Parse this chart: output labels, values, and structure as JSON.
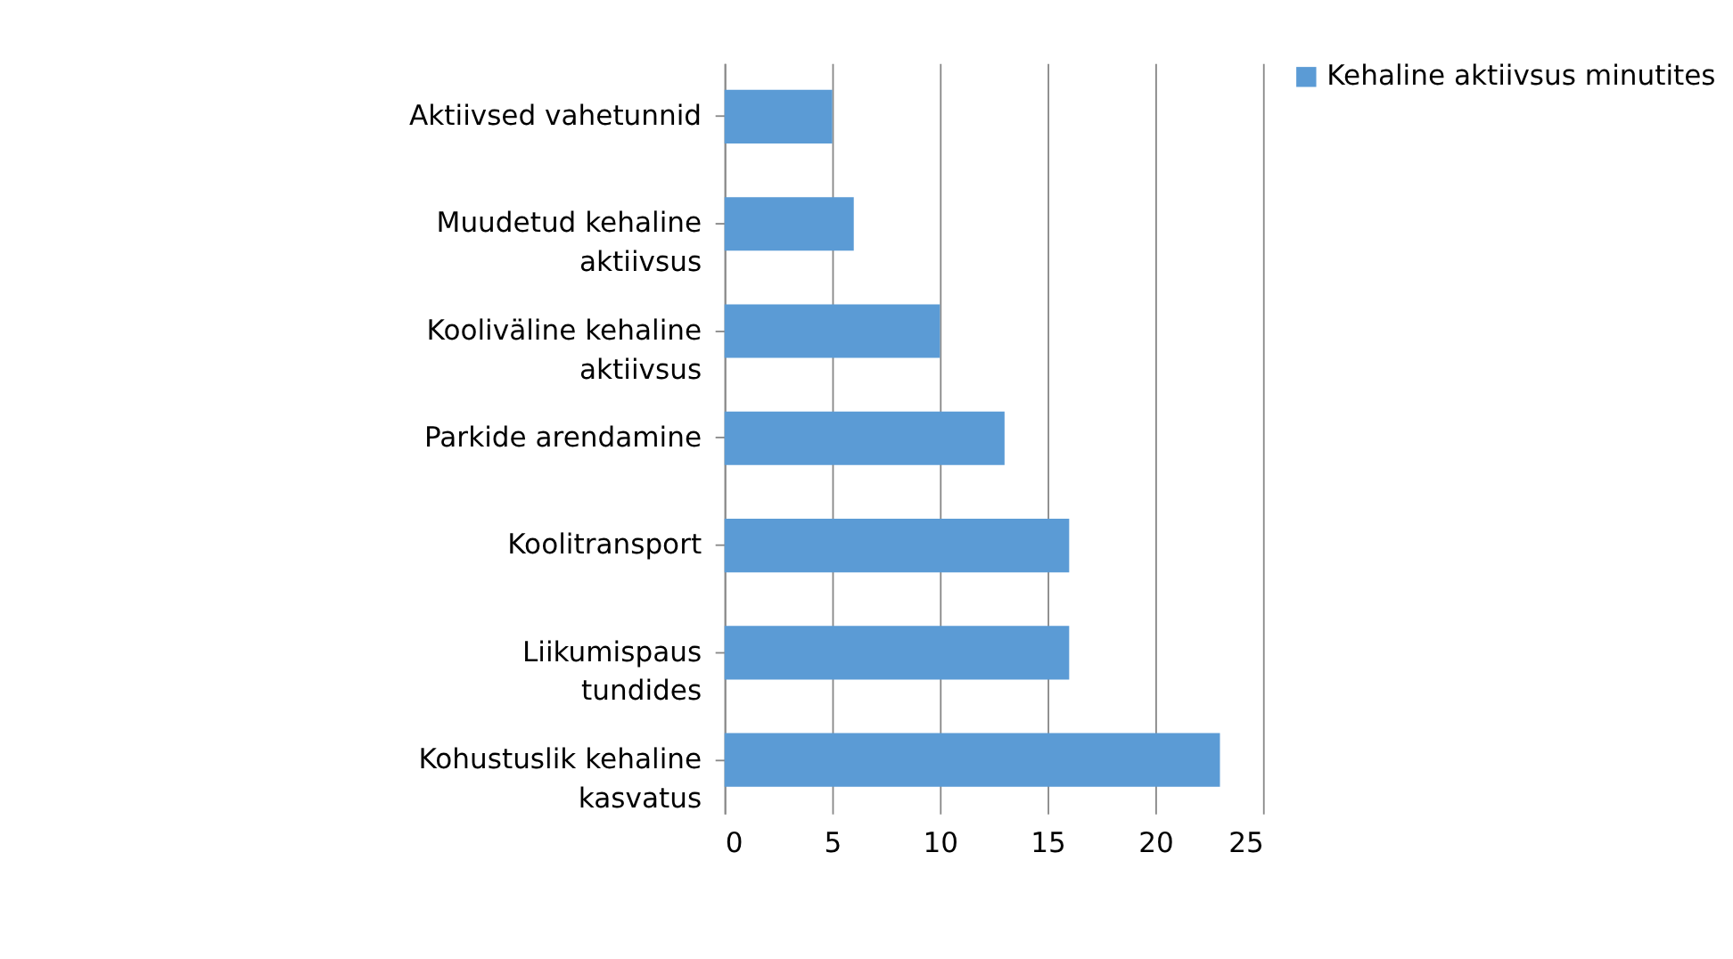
{
  "chart_data": {
    "type": "bar",
    "orientation": "horizontal",
    "categories": [
      "Aktiivsed vahetunnid",
      "Muudetud kehaline aktiivsus",
      "Kooliväline kehaline aktiivsus",
      "Parkide arendamine",
      "Koolitransport",
      "Liikumispaus tundides",
      "Kohustuslik kehaline kasvatus"
    ],
    "series": [
      {
        "name": "Kehaline aktiivsus minutites",
        "color": "#5b9bd5",
        "values": [
          5,
          6,
          10,
          13,
          16,
          16,
          23
        ]
      }
    ],
    "xlim": [
      0,
      25
    ],
    "xticks": [
      0,
      5,
      10,
      15,
      20,
      25
    ],
    "grid": "x",
    "legend": "right"
  }
}
